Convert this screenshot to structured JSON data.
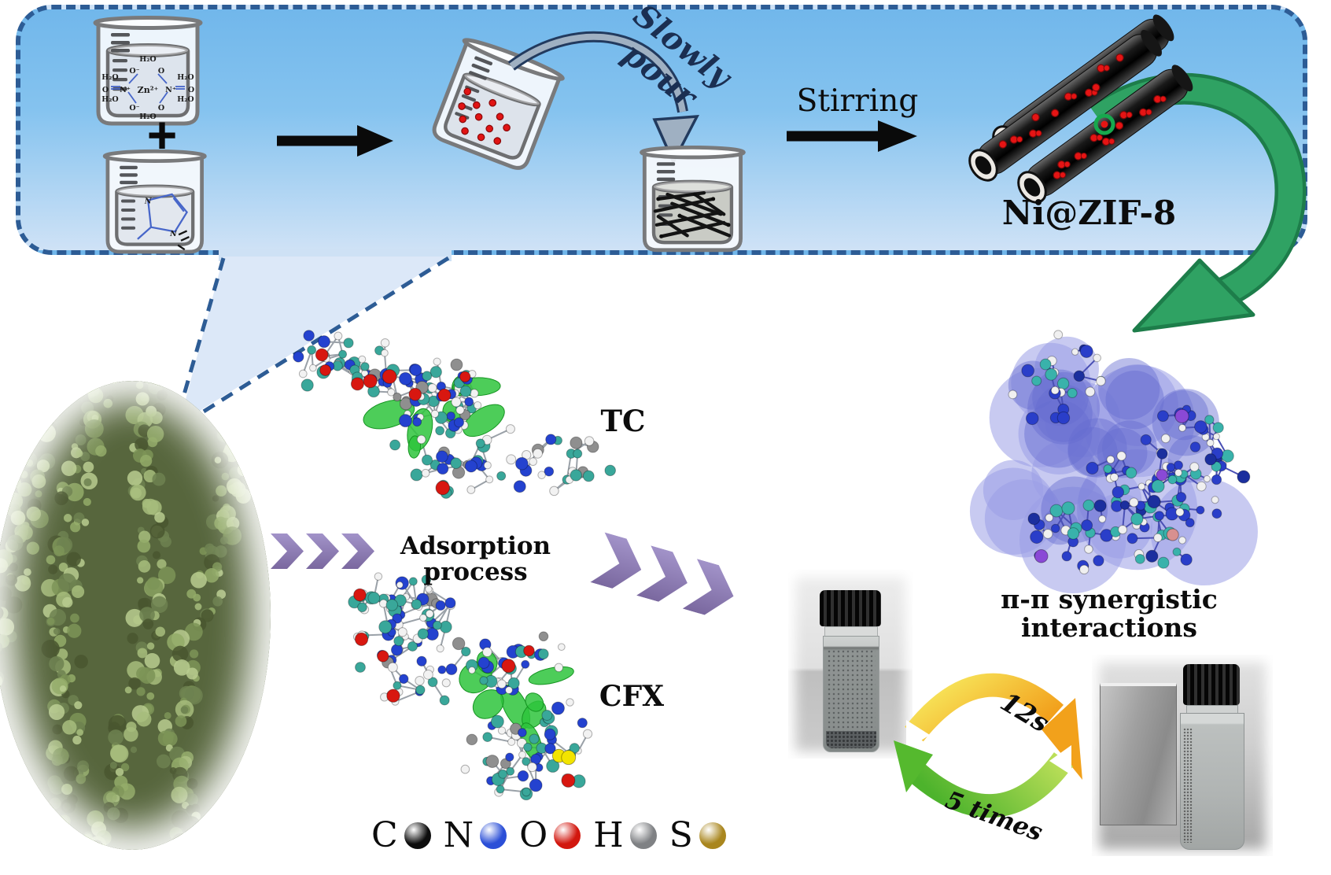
{
  "scheme": {
    "slowly_pour": "Slowly\npour",
    "stirring": "Stirring",
    "product": "Ni@ZIF-8"
  },
  "chem": {
    "plus": "+",
    "h2o": "H₂O",
    "zn": "Zn²⁺",
    "n_plus": "N⁺",
    "o_minus": "O⁻",
    "o": "O",
    "n": "N"
  },
  "middle": {
    "adsorption": "Adsorption process",
    "tc": "TC",
    "cfx": "CFX"
  },
  "right": {
    "pipi": "π-π synergistic interactions",
    "cycle_top": "12s",
    "cycle_bottom": "5 times"
  },
  "legend": {
    "items": [
      {
        "label": "C",
        "color": "#0d0d0d"
      },
      {
        "label": "N",
        "color": "#2b4fd7"
      },
      {
        "label": "O",
        "color": "#d2170e"
      },
      {
        "label": "H",
        "color": "#7f8184"
      },
      {
        "label": "S",
        "color": "#a9861e"
      }
    ]
  },
  "art": {
    "accent_dash": "#2d5c95",
    "green_arrow": "#2fa263",
    "purple_chevron": "#8a79b6",
    "red_dot": "#e51414",
    "molecules": {
      "tc": {
        "seed": 7,
        "atoms": 150,
        "bond": "#9aa1a8",
        "blobs": 7,
        "blob_color": "#2ec43c",
        "palette": [
          [
            "#39a79a",
            5
          ],
          [
            "#2442cf",
            3
          ],
          [
            "#f2f2f2",
            4
          ],
          [
            "#8f8f8f",
            1
          ]
        ],
        "special": [
          [
            "#d81710",
            9
          ]
        ]
      },
      "cfx": {
        "seed": 13,
        "atoms": 170,
        "bond": "#9aa1a8",
        "blobs": 8,
        "blob_color": "#2ec43c",
        "palette": [
          [
            "#39a79a",
            5
          ],
          [
            "#2442cf",
            3
          ],
          [
            "#f2f2f2",
            4
          ],
          [
            "#8f8f8f",
            1
          ]
        ],
        "special": [
          [
            "#d81710",
            7
          ],
          [
            "#f2e400",
            2
          ]
        ]
      },
      "pipi": {
        "seed": 29,
        "atoms": 150,
        "bond": "#4a50b5",
        "blobs": 0,
        "blob_color": "#2ec43c",
        "palette": [
          [
            "#2a3ec9",
            4
          ],
          [
            "#39b2ab",
            3
          ],
          [
            "#f0f0f0",
            3
          ],
          [
            "#1b2f9e",
            1
          ]
        ],
        "special": [
          [
            "#8a49d6",
            3
          ],
          [
            "#d89090",
            1
          ]
        ],
        "surface": {
          "n": 16,
          "outer": "#9a9ee6",
          "inner": "#666cd0"
        }
      }
    },
    "sem_greens": [
      "#6d8150",
      "#7d9457",
      "#93ab69",
      "#a7bd7c",
      "#b9cd8f",
      "#49562f"
    ]
  }
}
